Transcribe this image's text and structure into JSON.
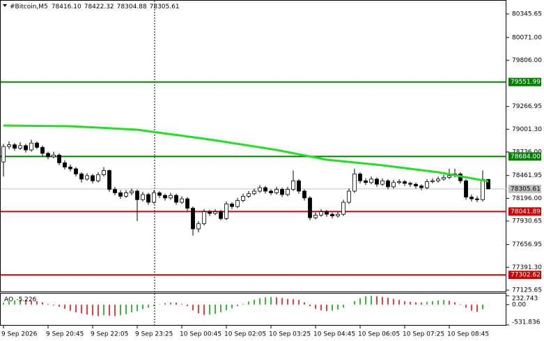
{
  "chart_data": {
    "type": "candlestick",
    "header": {
      "symbol": "#Bitcoin,M5",
      "ohlc_labels": [
        "78416.10",
        "78422.32",
        "78304.88",
        "78305.61"
      ]
    },
    "ylim": [
      77125.65,
      80345.65
    ],
    "yticks": [
      80345.65,
      {
        "value": 80071.0,
        "label": "80071.00"
      },
      {
        "value": 79806.0,
        "label": "79806.00"
      },
      79266.95,
      {
        "value": 79001.3,
        "label": "79001.30"
      },
      {
        "value": 78736.0,
        "label": "78736.00"
      },
      78461.95,
      {
        "value": 78196.0,
        "label": "78196.00"
      },
      77930.65,
      77656.95,
      {
        "value": 77391.3,
        "label": "77391.30"
      },
      77125.65
    ],
    "xticks": [
      {
        "value": 0,
        "label": "9 Sep 2026"
      },
      {
        "value": 8,
        "label": "9 Sep 20:45"
      },
      {
        "value": 16,
        "label": "9 Sep 22:05"
      },
      {
        "value": 24,
        "label": "9 Sep 23:25"
      },
      {
        "value": 32,
        "label": "10 Sep 00:45"
      },
      {
        "value": 40,
        "label": "10 Sep 02:05"
      },
      {
        "value": 48,
        "label": "10 Sep 03:25"
      },
      {
        "value": 56,
        "label": "10 Sep 04:45"
      },
      {
        "value": 64,
        "label": "10 Sep 06:05"
      },
      {
        "value": 72,
        "label": "10 Sep 07:25"
      },
      {
        "value": 80,
        "label": "10 Sep 08:45"
      }
    ],
    "bull_color": "#ffffff",
    "bear_color": "#000000",
    "candles": [
      [
        78620,
        78830,
        78450,
        78800
      ],
      [
        78800,
        78860,
        78770,
        78820
      ],
      [
        78820,
        78840,
        78750,
        78780
      ],
      [
        78780,
        78850,
        78760,
        78810
      ],
      [
        78810,
        78830,
        78730,
        78760
      ],
      [
        78760,
        78880,
        78740,
        78840
      ],
      [
        78840,
        78860,
        78770,
        78790
      ],
      [
        78790,
        78810,
        78690,
        78720
      ],
      [
        78720,
        78740,
        78650,
        78680
      ],
      [
        78680,
        78740,
        78660,
        78700
      ],
      [
        78700,
        78720,
        78580,
        78610
      ],
      [
        78610,
        78640,
        78530,
        78560
      ],
      [
        78560,
        78590,
        78510,
        78540
      ],
      [
        78540,
        78560,
        78450,
        78480
      ],
      [
        78480,
        78500,
        78380,
        78420
      ],
      [
        78420,
        78490,
        78400,
        78460
      ],
      [
        78460,
        78480,
        78370,
        78400
      ],
      [
        78400,
        78500,
        78380,
        78470
      ],
      [
        78470,
        78560,
        78450,
        78520
      ],
      [
        78520,
        78530,
        78270,
        78300
      ],
      [
        78300,
        78330,
        78230,
        78260
      ],
      [
        78260,
        78290,
        78190,
        78220
      ],
      [
        78220,
        78290,
        78200,
        78260
      ],
      [
        78260,
        78310,
        78230,
        78280
      ],
      [
        78280,
        78300,
        77930,
        78180
      ],
      [
        78180,
        78270,
        78160,
        78240
      ],
      [
        78240,
        78260,
        78120,
        78150
      ],
      [
        78150,
        78290,
        78130,
        78260
      ],
      [
        78260,
        78280,
        78200,
        78230
      ],
      [
        78230,
        78250,
        78170,
        78200
      ],
      [
        78200,
        78260,
        78180,
        78230
      ],
      [
        78230,
        78250,
        78120,
        78150
      ],
      [
        78150,
        78220,
        78130,
        78190
      ],
      [
        78190,
        78210,
        78050,
        78080
      ],
      [
        78080,
        78100,
        77760,
        77840
      ],
      [
        77840,
        77930,
        77800,
        77900
      ],
      [
        77900,
        78070,
        77880,
        78040
      ],
      [
        78040,
        78060,
        77990,
        78020
      ],
      [
        78020,
        78070,
        78000,
        78040
      ],
      [
        78040,
        78060,
        77940,
        77960
      ],
      [
        77960,
        78160,
        77940,
        78130
      ],
      [
        78130,
        78150,
        78070,
        78100
      ],
      [
        78100,
        78200,
        78080,
        78170
      ],
      [
        78170,
        78250,
        78150,
        78220
      ],
      [
        78220,
        78280,
        78200,
        78250
      ],
      [
        78250,
        78310,
        78230,
        78280
      ],
      [
        78280,
        78350,
        78260,
        78320
      ],
      [
        78320,
        78340,
        78250,
        78280
      ],
      [
        78280,
        78300,
        78230,
        78260
      ],
      [
        78260,
        78330,
        78240,
        78300
      ],
      [
        78300,
        78320,
        78210,
        78240
      ],
      [
        78240,
        78330,
        78220,
        78300
      ],
      [
        78300,
        78520,
        78280,
        78400
      ],
      [
        78400,
        78420,
        78250,
        78280
      ],
      [
        78280,
        78300,
        78170,
        78200
      ],
      [
        78200,
        78220,
        77940,
        77970
      ],
      [
        77970,
        78030,
        77950,
        78000
      ],
      [
        78000,
        78070,
        77980,
        78040
      ],
      [
        78040,
        78060,
        77980,
        78010
      ],
      [
        78010,
        78030,
        77960,
        77990
      ],
      [
        77990,
        78040,
        77970,
        78010
      ],
      [
        78010,
        78180,
        77990,
        78150
      ],
      [
        78150,
        78310,
        78130,
        78280
      ],
      [
        78280,
        78540,
        78260,
        78480
      ],
      [
        78480,
        78500,
        78370,
        78400
      ],
      [
        78400,
        78430,
        78350,
        78380
      ],
      [
        78380,
        78450,
        78360,
        78420
      ],
      [
        78420,
        78440,
        78330,
        78360
      ],
      [
        78360,
        78430,
        78340,
        78400
      ],
      [
        78400,
        78420,
        78300,
        78330
      ],
      [
        78330,
        78410,
        78310,
        78380
      ],
      [
        78380,
        78420,
        78360,
        78390
      ],
      [
        78390,
        78410,
        78340,
        78370
      ],
      [
        78370,
        78390,
        78330,
        78360
      ],
      [
        78360,
        78380,
        78310,
        78340
      ],
      [
        78340,
        78360,
        78290,
        78320
      ],
      [
        78320,
        78420,
        78300,
        78390
      ],
      [
        78390,
        78430,
        78370,
        78400
      ],
      [
        78400,
        78450,
        78380,
        78420
      ],
      [
        78420,
        78470,
        78400,
        78440
      ],
      [
        78440,
        78540,
        78420,
        78460
      ],
      [
        78460,
        78540,
        78440,
        78480
      ],
      [
        78480,
        78500,
        78370,
        78400
      ],
      [
        78400,
        78420,
        78180,
        78210
      ],
      [
        78210,
        78240,
        78160,
        78190
      ],
      [
        78190,
        78220,
        78150,
        78180
      ],
      [
        78180,
        78520,
        78160,
        78416.1
      ],
      [
        78416.1,
        78422.32,
        78304.88,
        78305.61
      ]
    ],
    "ma": {
      "color": "#22e022",
      "x": [
        0,
        12,
        24,
        37,
        49,
        58,
        68,
        78,
        87
      ],
      "values": [
        79045,
        79037,
        78996,
        78882,
        78760,
        78646,
        78581,
        78500,
        78394
      ]
    },
    "levels": [
      {
        "value": 79551.99,
        "color": "#008000"
      },
      {
        "value": 78684,
        "label": "78684.00",
        "color": "#008000"
      },
      {
        "value": 78041.89,
        "color": "#d00000"
      },
      {
        "value": 77302.62,
        "color": "#d00000"
      }
    ],
    "last_price": 78305.61,
    "ao": {
      "title": "AO",
      "up_color": "#00a000",
      "down_color": "#d00000",
      "ylim": [
        -531.836,
        232.743
      ],
      "yticks": [
        232.743,
        {
          "value": 0,
          "label": "0.00"
        },
        -531.836
      ],
      "values": [
        50,
        80,
        110,
        130,
        120,
        100,
        90,
        60,
        20,
        -20,
        -60,
        -110,
        -160,
        -200,
        -230,
        -260,
        -280,
        -300,
        -280,
        -290,
        -300,
        -280,
        -250,
        -200,
        -170,
        -120,
        -80,
        -40,
        10,
        40,
        60,
        50,
        20,
        -40,
        -150,
        -230,
        -270,
        -260,
        -240,
        -200,
        -150,
        -100,
        -40,
        20,
        80,
        130,
        170,
        190,
        200,
        190,
        170,
        150,
        140,
        120,
        60,
        -40,
        -110,
        -150,
        -170,
        -160,
        -130,
        -80,
        0,
        90,
        170,
        220,
        230,
        220,
        200,
        180,
        150,
        120,
        90,
        70,
        60,
        50,
        70,
        90,
        110,
        120,
        100,
        60,
        10,
        -80,
        -160,
        -190,
        -120,
        -5.226
      ]
    }
  }
}
